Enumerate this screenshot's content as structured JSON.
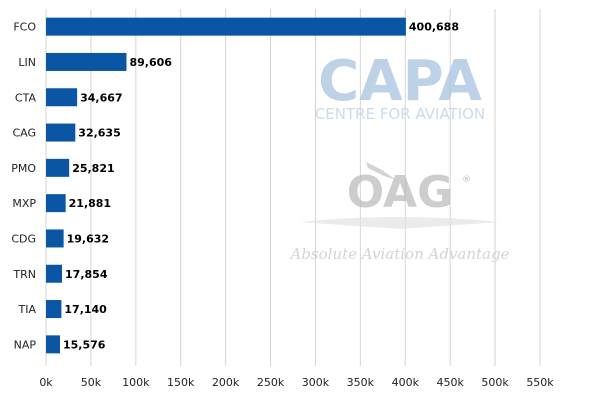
{
  "chart_data": {
    "type": "bar",
    "orientation": "horizontal",
    "categories": [
      "FCO",
      "LIN",
      "CTA",
      "CAG",
      "PMO",
      "MXP",
      "CDG",
      "TRN",
      "TIA",
      "NAP"
    ],
    "values": [
      400688,
      89606,
      34667,
      32635,
      25821,
      21881,
      19632,
      17854,
      17140,
      15576
    ],
    "value_labels": [
      "400,688",
      "89,606",
      "34,667",
      "32,635",
      "25,821",
      "21,881",
      "19,632",
      "17,854",
      "17,140",
      "15,576"
    ],
    "xticks": [
      "0k",
      "50k",
      "100k",
      "150k",
      "200k",
      "250k",
      "300k",
      "350k",
      "400k",
      "450k",
      "500k",
      "550k"
    ],
    "xlim": [
      0,
      550000
    ],
    "title": "",
    "xlabel": "",
    "ylabel": "",
    "grid": true,
    "bar_color": "#0b56a4",
    "grid_color": "#d4d4d4"
  },
  "watermarks": {
    "capa_logo": "CAPA",
    "capa_text": "CENTRE FOR AVIATION",
    "oag_logo": "OAG",
    "oag_registered": "®",
    "oag_text": "Absolute Aviation Advantage",
    "capa_color": "#a8c4e0",
    "oag_color": "#bdbdbd"
  }
}
